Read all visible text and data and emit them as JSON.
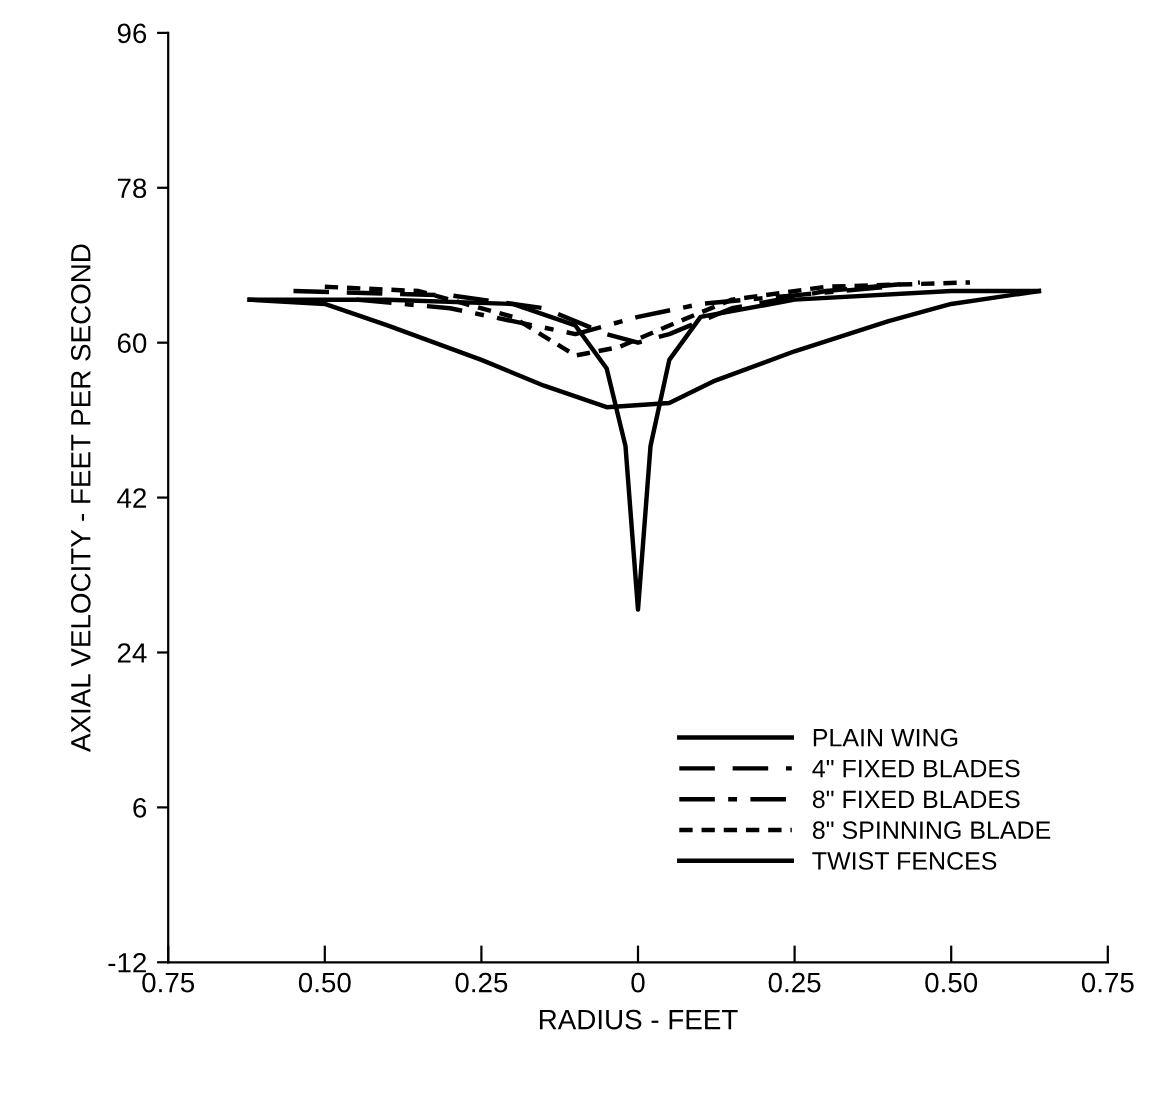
{
  "chart_data": {
    "type": "line",
    "xlabel": "RADIUS - FEET",
    "ylabel": "AXIAL VELOCITY - FEET PER SECOND",
    "xlim": [
      -0.75,
      0.75
    ],
    "ylim": [
      -12,
      96
    ],
    "xticks": [
      {
        "value": -0.75,
        "label": "0.75"
      },
      {
        "value": -0.5,
        "label": "0.50"
      },
      {
        "value": -0.25,
        "label": "0.25"
      },
      {
        "value": 0,
        "label": "0"
      },
      {
        "value": 0.25,
        "label": "0.25"
      },
      {
        "value": 0.5,
        "label": "0.50"
      },
      {
        "value": 0.75,
        "label": "0.75"
      }
    ],
    "yticks": [
      -12,
      6,
      24,
      42,
      60,
      78,
      96
    ],
    "grid": false,
    "legend": "bottom right",
    "color": "#000000",
    "series": [
      {
        "name": "PLAIN WING",
        "line_style": "solid",
        "x": [
          -0.62,
          -0.4,
          -0.2,
          -0.1,
          -0.05,
          -0.02,
          0,
          0.02,
          0.05,
          0.1,
          0.25,
          0.5,
          0.64
        ],
        "values": [
          65,
          65,
          64.5,
          62,
          57,
          48,
          29,
          48,
          58,
          63,
          65,
          66,
          66
        ]
      },
      {
        "name": "4\" FIXED BLADES",
        "line_style": "dashed",
        "x": [
          -0.55,
          -0.3,
          -0.15,
          -0.05,
          0,
          0.05,
          0.15,
          0.3,
          0.45
        ],
        "values": [
          66,
          65.5,
          64,
          61,
          60,
          61,
          64,
          66,
          67
        ]
      },
      {
        "name": "8\" FIXED BLADES",
        "line_style": "dashdot",
        "x": [
          -0.45,
          -0.3,
          -0.2,
          -0.1,
          0,
          0.1,
          0.25,
          0.4
        ],
        "values": [
          65,
          64,
          62.5,
          61,
          63,
          64.5,
          65.5,
          66.5
        ]
      },
      {
        "name": "8\" SPINNING BLADE",
        "line_style": "dotted",
        "x": [
          -0.5,
          -0.35,
          -0.2,
          -0.1,
          -0.03,
          0.05,
          0.15,
          0.3,
          0.53
        ],
        "values": [
          66.5,
          66,
          63,
          58.5,
          59.5,
          62,
          65,
          66.5,
          67
        ]
      },
      {
        "name": "TWIST FENCES",
        "line_style": "solid",
        "x": [
          -0.62,
          -0.5,
          -0.4,
          -0.25,
          -0.15,
          -0.05,
          0.05,
          0.12,
          0.25,
          0.4,
          0.5,
          0.64
        ],
        "values": [
          65,
          64.5,
          62,
          58,
          55,
          52.5,
          53,
          55.5,
          59,
          62.5,
          64.5,
          66
        ]
      }
    ]
  }
}
